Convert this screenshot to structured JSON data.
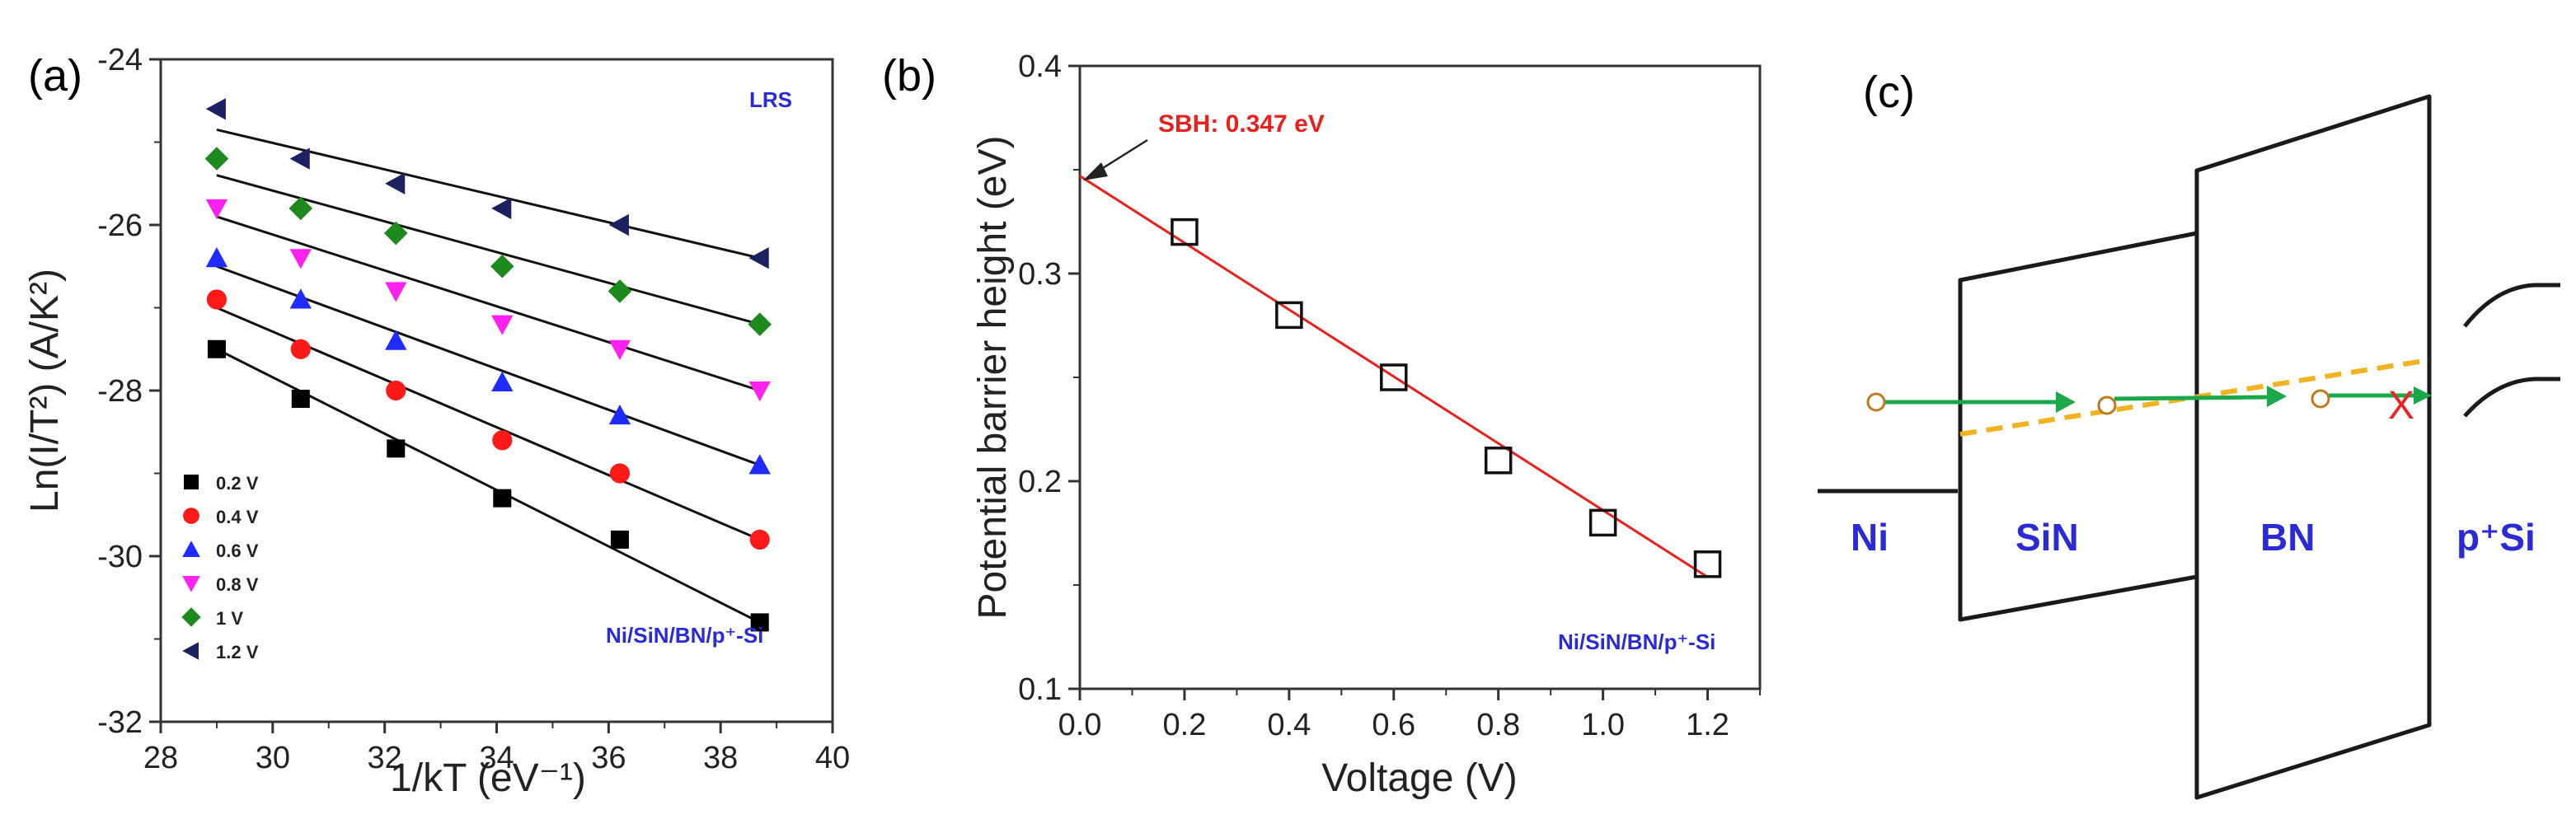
{
  "colors": {
    "axis": "#333333",
    "label_blue": "#2b2bd6",
    "fit_red": "#e8201e",
    "arrow_green": "#1aa84a",
    "path_orange": "#f2b323",
    "cross_red": "#ee2222"
  },
  "panel_a": {
    "label": "(a)",
    "corner_tag": "LRS",
    "device": "Ni/SiN/BN/p⁺-Si",
    "chart_data": {
      "type": "scatter",
      "xlabel": "1/kT (eV⁻¹)",
      "ylabel": "Ln(I/T²) (A/K²)",
      "xlim": [
        28,
        40
      ],
      "ylim": [
        -32,
        -24
      ],
      "x_ticks": [
        "28",
        "30",
        "32",
        "34",
        "36",
        "38",
        "40"
      ],
      "y_ticks": [
        "-24",
        "-26",
        "-28",
        "-30",
        "-32"
      ],
      "x": [
        29.0,
        30.5,
        32.2,
        34.1,
        36.2,
        38.7
      ],
      "series": [
        {
          "name": "0.2 V",
          "marker": "square",
          "color": "#000000",
          "values": [
            -27.5,
            -28.1,
            -28.7,
            -29.3,
            -29.8,
            -30.8
          ],
          "fit": [
            -27.5,
            -30.8
          ]
        },
        {
          "name": "0.4 V",
          "marker": "circle",
          "color": "#ff1a1a",
          "values": [
            -26.9,
            -27.5,
            -28.0,
            -28.6,
            -29.0,
            -29.8
          ],
          "fit": [
            -27.0,
            -29.8
          ]
        },
        {
          "name": "0.6 V",
          "marker": "triangle-up",
          "color": "#1f2bff",
          "values": [
            -26.4,
            -26.9,
            -27.4,
            -27.9,
            -28.3,
            -28.9
          ],
          "fit": [
            -26.5,
            -28.9
          ]
        },
        {
          "name": "0.8 V",
          "marker": "triangle-down",
          "color": "#ff22ee",
          "values": [
            -25.8,
            -26.4,
            -26.8,
            -27.2,
            -27.5,
            -28.0
          ],
          "fit": [
            -25.9,
            -28.0
          ]
        },
        {
          "name": "1 V",
          "marker": "diamond",
          "color": "#1e8a1e",
          "values": [
            -25.2,
            -25.8,
            -26.1,
            -26.5,
            -26.8,
            -27.2
          ],
          "fit": [
            -25.4,
            -27.2
          ]
        },
        {
          "name": "1.2 V",
          "marker": "triangle-left",
          "color": "#1c2260",
          "values": [
            -24.6,
            -25.2,
            -25.5,
            -25.8,
            -26.0,
            -26.4
          ],
          "fit": [
            -24.85,
            -26.4
          ]
        }
      ]
    }
  },
  "panel_b": {
    "label": "(b)",
    "device": "Ni/SiN/BN/p⁺-Si",
    "chart_data": {
      "type": "scatter",
      "xlabel": "Voltage (V)",
      "ylabel": "Potential barrier height (eV)",
      "xlim": [
        0.0,
        1.3
      ],
      "ylim": [
        0.1,
        0.4
      ],
      "x_ticks": [
        "0.0",
        "0.2",
        "0.4",
        "0.6",
        "0.8",
        "1.0",
        "1.2"
      ],
      "y_ticks": [
        "0.1",
        "0.2",
        "0.3",
        "0.4"
      ],
      "x": [
        0.2,
        0.4,
        0.6,
        0.8,
        1.0,
        1.2
      ],
      "values": [
        0.32,
        0.28,
        0.25,
        0.21,
        0.18,
        0.16
      ],
      "fit": {
        "intercept": 0.347,
        "slope": -0.161
      },
      "annotation": "SBH: 0.347 eV"
    }
  },
  "panel_c": {
    "label": "(c)",
    "layers": [
      "Ni",
      "SiN",
      "BN",
      "p⁺Si"
    ],
    "blocked_mark": "X"
  }
}
